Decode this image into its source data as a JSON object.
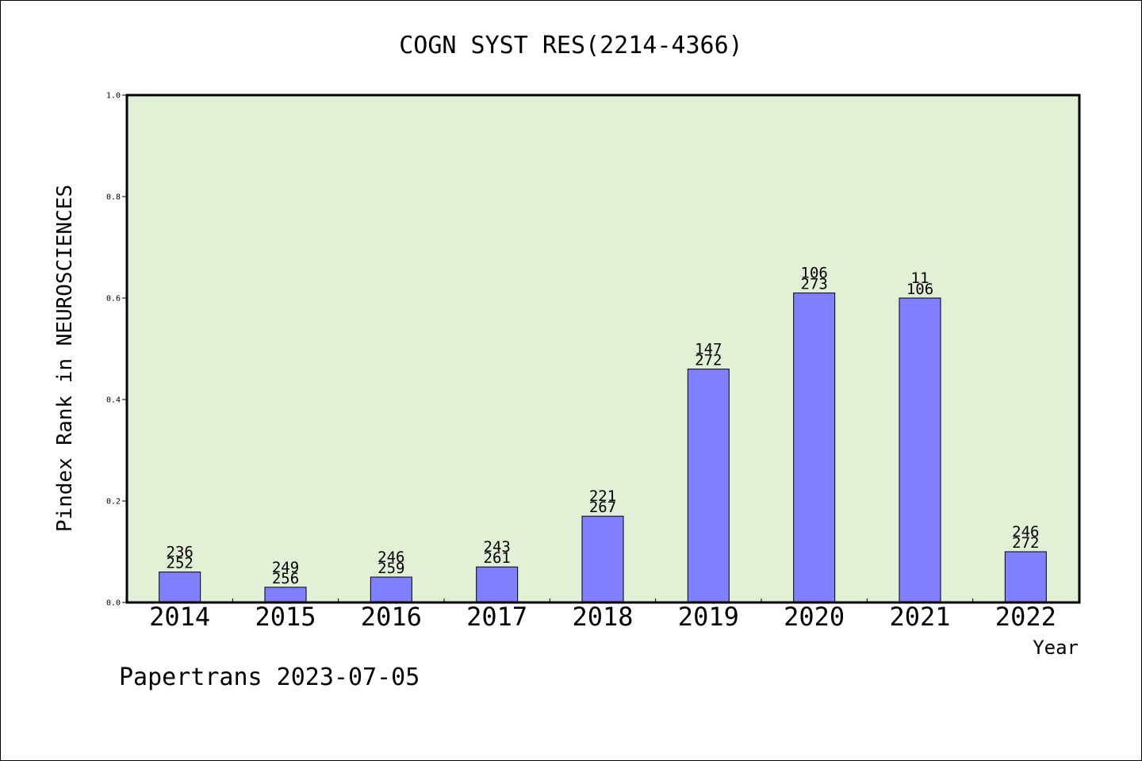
{
  "chart_data": {
    "type": "bar",
    "title": "COGN SYST RES(2214-4366)",
    "xlabel": "Year",
    "ylabel": "Pindex Rank in NEUROSCIENCES",
    "categories": [
      "2014",
      "2015",
      "2016",
      "2017",
      "2018",
      "2019",
      "2020",
      "2021",
      "2022"
    ],
    "values": [
      0.06,
      0.03,
      0.05,
      0.07,
      0.17,
      0.46,
      0.61,
      0.6,
      0.1
    ],
    "rank_labels": [
      "236",
      "249",
      "246",
      "243",
      "221",
      "147",
      "106",
      "11",
      "246"
    ],
    "total_labels": [
      "252",
      "256",
      "259",
      "261",
      "267",
      "272",
      "273",
      "106",
      "272"
    ],
    "ylim": [
      0,
      1.0
    ],
    "yticks": [
      "0.0",
      "0.2",
      "0.4",
      "0.6",
      "0.8",
      "1.0"
    ],
    "grid": false,
    "colors": {
      "bar": "#8080ff",
      "plot_background": "#e2f0d6",
      "frame": "#000000"
    }
  },
  "footer": "Papertrans 2023-07-05"
}
